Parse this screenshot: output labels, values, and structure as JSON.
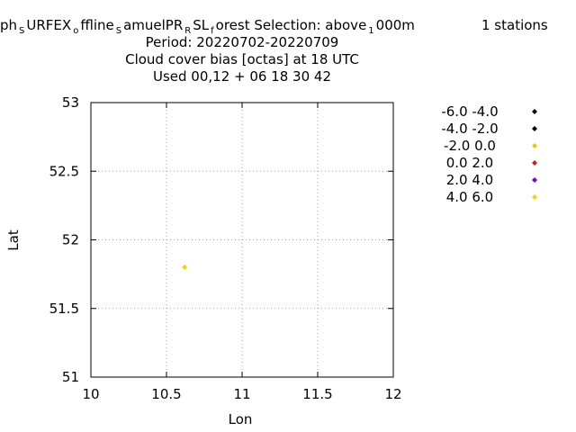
{
  "title": {
    "line1_parts": [
      {
        "text": "ph",
        "sub": false
      },
      {
        "text": "S",
        "sub": true
      },
      {
        "text": "URFEX",
        "sub": false
      },
      {
        "text": "o",
        "sub": true
      },
      {
        "text": "ffline",
        "sub": false
      },
      {
        "text": "S",
        "sub": true
      },
      {
        "text": "amuelPR",
        "sub": false
      },
      {
        "text": "R",
        "sub": true
      },
      {
        "text": "SL",
        "sub": false
      },
      {
        "text": "f",
        "sub": true
      },
      {
        "text": "orest   Selection: above",
        "sub": false
      },
      {
        "text": "1",
        "sub": true
      },
      {
        "text": "000m",
        "sub": false
      }
    ],
    "stations": "1 stations",
    "line2": "Period: 20220702-20220709",
    "line3": "Cloud cover bias [octas] at  18 UTC",
    "line4": "Used  00,12  + 06 18 30 42"
  },
  "chart_data": {
    "type": "scatter",
    "xlabel": "Lon",
    "ylabel": "Lat",
    "xlim": [
      10,
      12
    ],
    "ylim": [
      51,
      53
    ],
    "xticks": [
      "10",
      "10.5",
      "11",
      "11.5",
      "12"
    ],
    "yticks": [
      "51",
      "51.5",
      "52",
      "52.5",
      "53"
    ],
    "grid": true,
    "legend_placement": "right",
    "legend": [
      {
        "label": "-6.0 -4.0",
        "color": "#000000"
      },
      {
        "label": "-4.0 -2.0",
        "color": "#000000"
      },
      {
        "label": "-2.0 0.0",
        "color": "#f0c800"
      },
      {
        "label": "0.0 2.0",
        "color": "#c81e1e"
      },
      {
        "label": "2.0 4.0",
        "color": "#7a00d4"
      },
      {
        "label": "4.0 6.0",
        "color": "#f0d800"
      }
    ],
    "points": [
      {
        "x": 10.62,
        "y": 51.8,
        "color": "#f0d800"
      }
    ]
  }
}
